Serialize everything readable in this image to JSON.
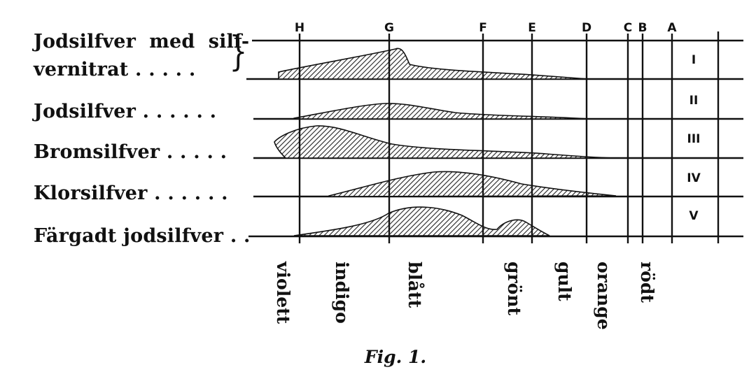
{
  "figure": {
    "caption": "Fig. 1.",
    "rows": [
      {
        "label": "Jodsilfver  med  silf-\nvernitrat . . . . .",
        "roman": "I"
      },
      {
        "label": "Jodsilfver . . . . . .",
        "roman": "II"
      },
      {
        "label": "Bromsilfver . . . . .",
        "roman": "III"
      },
      {
        "label": "Klorsilfver . . . . . .",
        "roman": "IV"
      },
      {
        "label": "Färgadt jodsilfver . .",
        "roman": "V"
      }
    ],
    "spectral_lines": [
      "H",
      "G",
      "F",
      "E",
      "D",
      "C",
      "B",
      "A"
    ],
    "colors": [
      "violett",
      "indigo",
      "blått",
      "grönt",
      "gult",
      "orange",
      "rödt"
    ],
    "ink_color": "#111111",
    "hatch_fill": "#9a9a9a"
  }
}
